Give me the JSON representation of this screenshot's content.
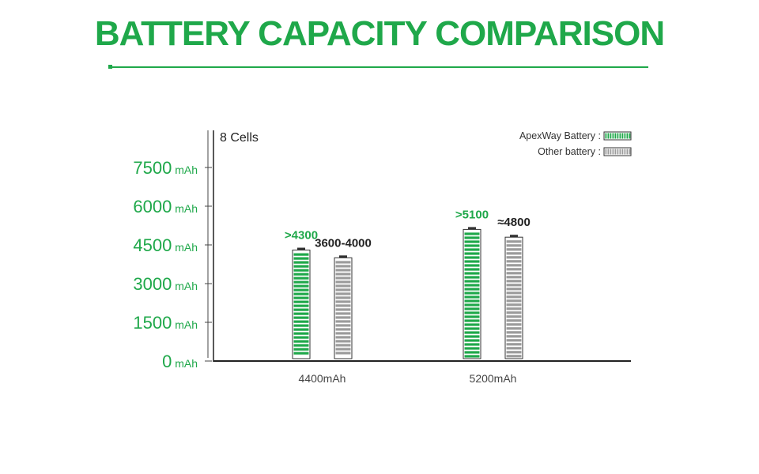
{
  "title": "BATTERY CAPACITY COMPARISON",
  "colors": {
    "accent": "#1fa84a",
    "other": "#9b9b9b",
    "text": "#222222"
  },
  "chart_data": {
    "type": "bar",
    "subtitle": "8 Cells",
    "y_unit": "mAh",
    "y_ticks": [
      "0",
      "1500",
      "3000",
      "4500",
      "6000",
      "7500"
    ],
    "ylim": [
      0,
      8000
    ],
    "categories": [
      "4400mAh",
      "5200mAh"
    ],
    "series": [
      {
        "name": "ApexWay Battery :",
        "values": [
          4300,
          5100
        ],
        "labels": [
          ">4300",
          ">5100"
        ]
      },
      {
        "name": "Other battery :",
        "values": [
          4000,
          4800
        ],
        "labels": [
          "3600-4000",
          "≈4800"
        ]
      }
    ],
    "legend_position": "top-right",
    "grid": false
  }
}
